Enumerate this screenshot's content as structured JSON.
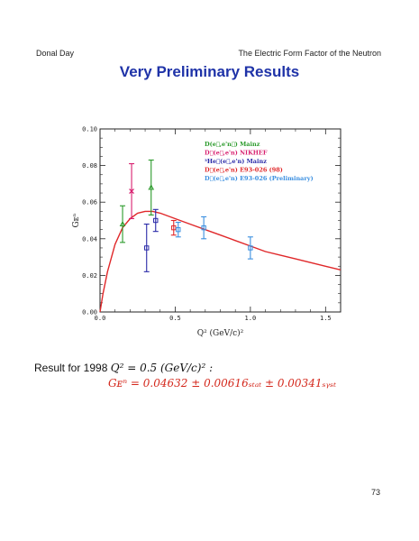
{
  "header": {
    "left": "Donal Day",
    "right": "The Electric Form Factor of the Neutron"
  },
  "title": "Very Preliminary Results",
  "result_line": {
    "prefix": "Result for 1998",
    "math": "Q² = 0.5 (GeV/c)² :"
  },
  "formula": "Gᴇⁿ = 0.04632 ± 0.00616ₛₜₐₜ ± 0.00341ₛᵧₛₜ",
  "page_number": "73",
  "chart_data": {
    "type": "scatter",
    "xlabel": "Q² (GeV/c)²",
    "ylabel": "Gᴇⁿ",
    "xlim": [
      0,
      1.6
    ],
    "ylim": [
      0,
      0.1
    ],
    "xticks": [
      "0.0",
      "0.5",
      "1.0",
      "1.5"
    ],
    "yticks": [
      "0.00",
      "0.02",
      "0.04",
      "0.06",
      "0.08",
      "0.10"
    ],
    "legend_position": "top-right",
    "series": [
      {
        "name": "D(e⃗,e'n⃗) Mainz",
        "color": "#2a9a2a",
        "marker": "triangle",
        "points": [
          {
            "x": 0.15,
            "y": 0.048,
            "err": 0.01
          },
          {
            "x": 0.34,
            "y": 0.068,
            "err": 0.015
          }
        ]
      },
      {
        "name": "D⃗(e⃗,e'n) NIKHEF",
        "color": "#d81e6e",
        "marker": "cross",
        "points": [
          {
            "x": 0.21,
            "y": 0.066,
            "err": 0.015
          }
        ]
      },
      {
        "name": "³He⃗(e⃗,e'n) Mainz",
        "color": "#2a2aa8",
        "marker": "square",
        "points": [
          {
            "x": 0.31,
            "y": 0.035,
            "err": 0.013
          },
          {
            "x": 0.37,
            "y": 0.05,
            "err": 0.006
          }
        ]
      },
      {
        "name": "D⃗(e⃗,e'n) E93-026 (98)",
        "color": "#e0282a",
        "marker": "square",
        "points": [
          {
            "x": 0.49,
            "y": 0.046,
            "err": 0.004
          }
        ]
      },
      {
        "name": "D⃗(e⃗,e'n) E93-026 (Preliminary)",
        "color": "#3b8fe0",
        "marker": "square",
        "points": [
          {
            "x": 0.52,
            "y": 0.045,
            "err": 0.004
          },
          {
            "x": 0.69,
            "y": 0.046,
            "err": 0.006
          },
          {
            "x": 1.0,
            "y": 0.035,
            "err": 0.006
          }
        ]
      }
    ],
    "curve": {
      "color": "#e0282a",
      "x": [
        0.0,
        0.02,
        0.05,
        0.1,
        0.15,
        0.2,
        0.25,
        0.3,
        0.35,
        0.4,
        0.5,
        0.6,
        0.7,
        0.8,
        0.9,
        1.0,
        1.1,
        1.2,
        1.3,
        1.4,
        1.5,
        1.6
      ],
      "y": [
        0.0,
        0.01,
        0.022,
        0.037,
        0.046,
        0.051,
        0.054,
        0.055,
        0.055,
        0.054,
        0.051,
        0.048,
        0.045,
        0.042,
        0.039,
        0.036,
        0.033,
        0.031,
        0.029,
        0.027,
        0.025,
        0.023
      ]
    }
  }
}
